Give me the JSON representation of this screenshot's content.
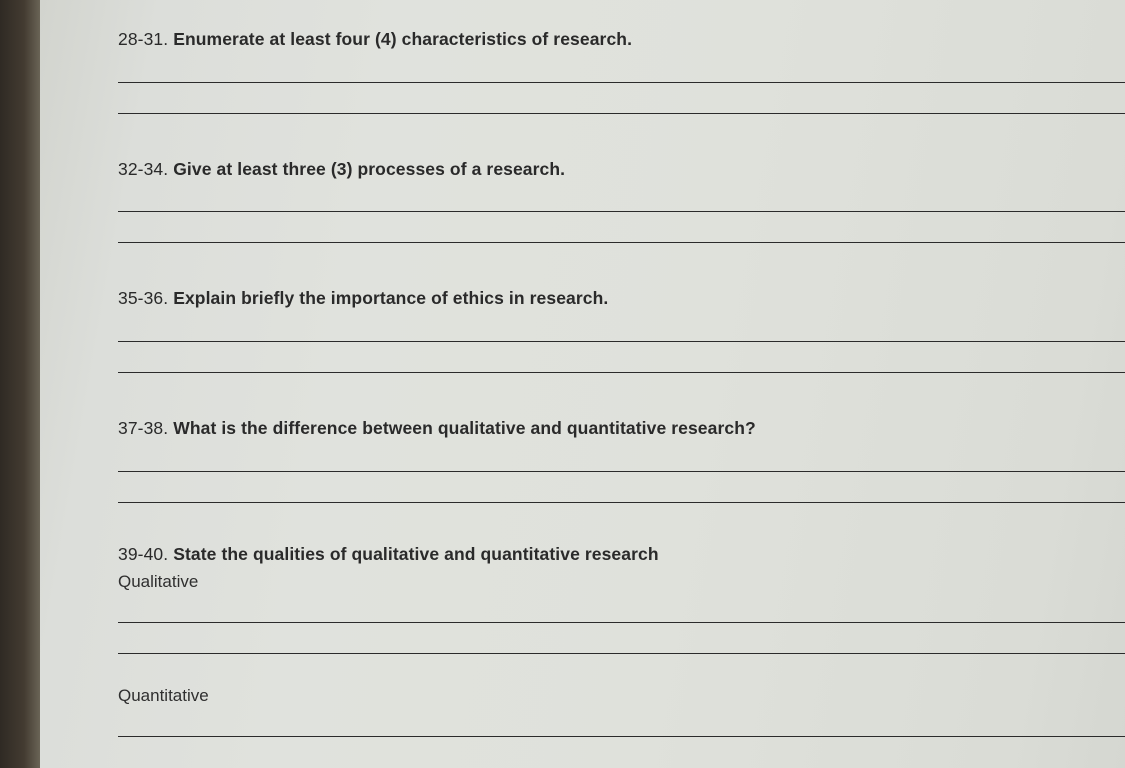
{
  "questions": [
    {
      "number": "28-31.",
      "prompt": "Enumerate at least four (4) characteristics of research.",
      "lines": 2,
      "sublabels": []
    },
    {
      "number": "32-34.",
      "prompt": "Give at least three (3) processes of a research.",
      "lines": 2,
      "sublabels": []
    },
    {
      "number": "35-36.",
      "prompt": "Explain briefly the importance of ethics in research.",
      "lines": 2,
      "sublabels": []
    },
    {
      "number": "37-38.",
      "prompt": "What is the difference between qualitative and quantitative research?",
      "lines": 2,
      "sublabels": []
    },
    {
      "number": "39-40.",
      "prompt": "State the qualities of qualitative and quantitative research",
      "lines": 0,
      "sublabels": [
        {
          "label": "Qualitative",
          "lines": 2
        },
        {
          "label": "Quantitative",
          "lines": 1
        }
      ]
    }
  ],
  "style": {
    "font_family": "Arial",
    "prompt_fontsize_pt": 13,
    "prompt_color": "#2a2a2a",
    "line_color": "#2b2b2b",
    "paper_bg": "#dfe1db",
    "edge_shadow": "#3a3530"
  }
}
